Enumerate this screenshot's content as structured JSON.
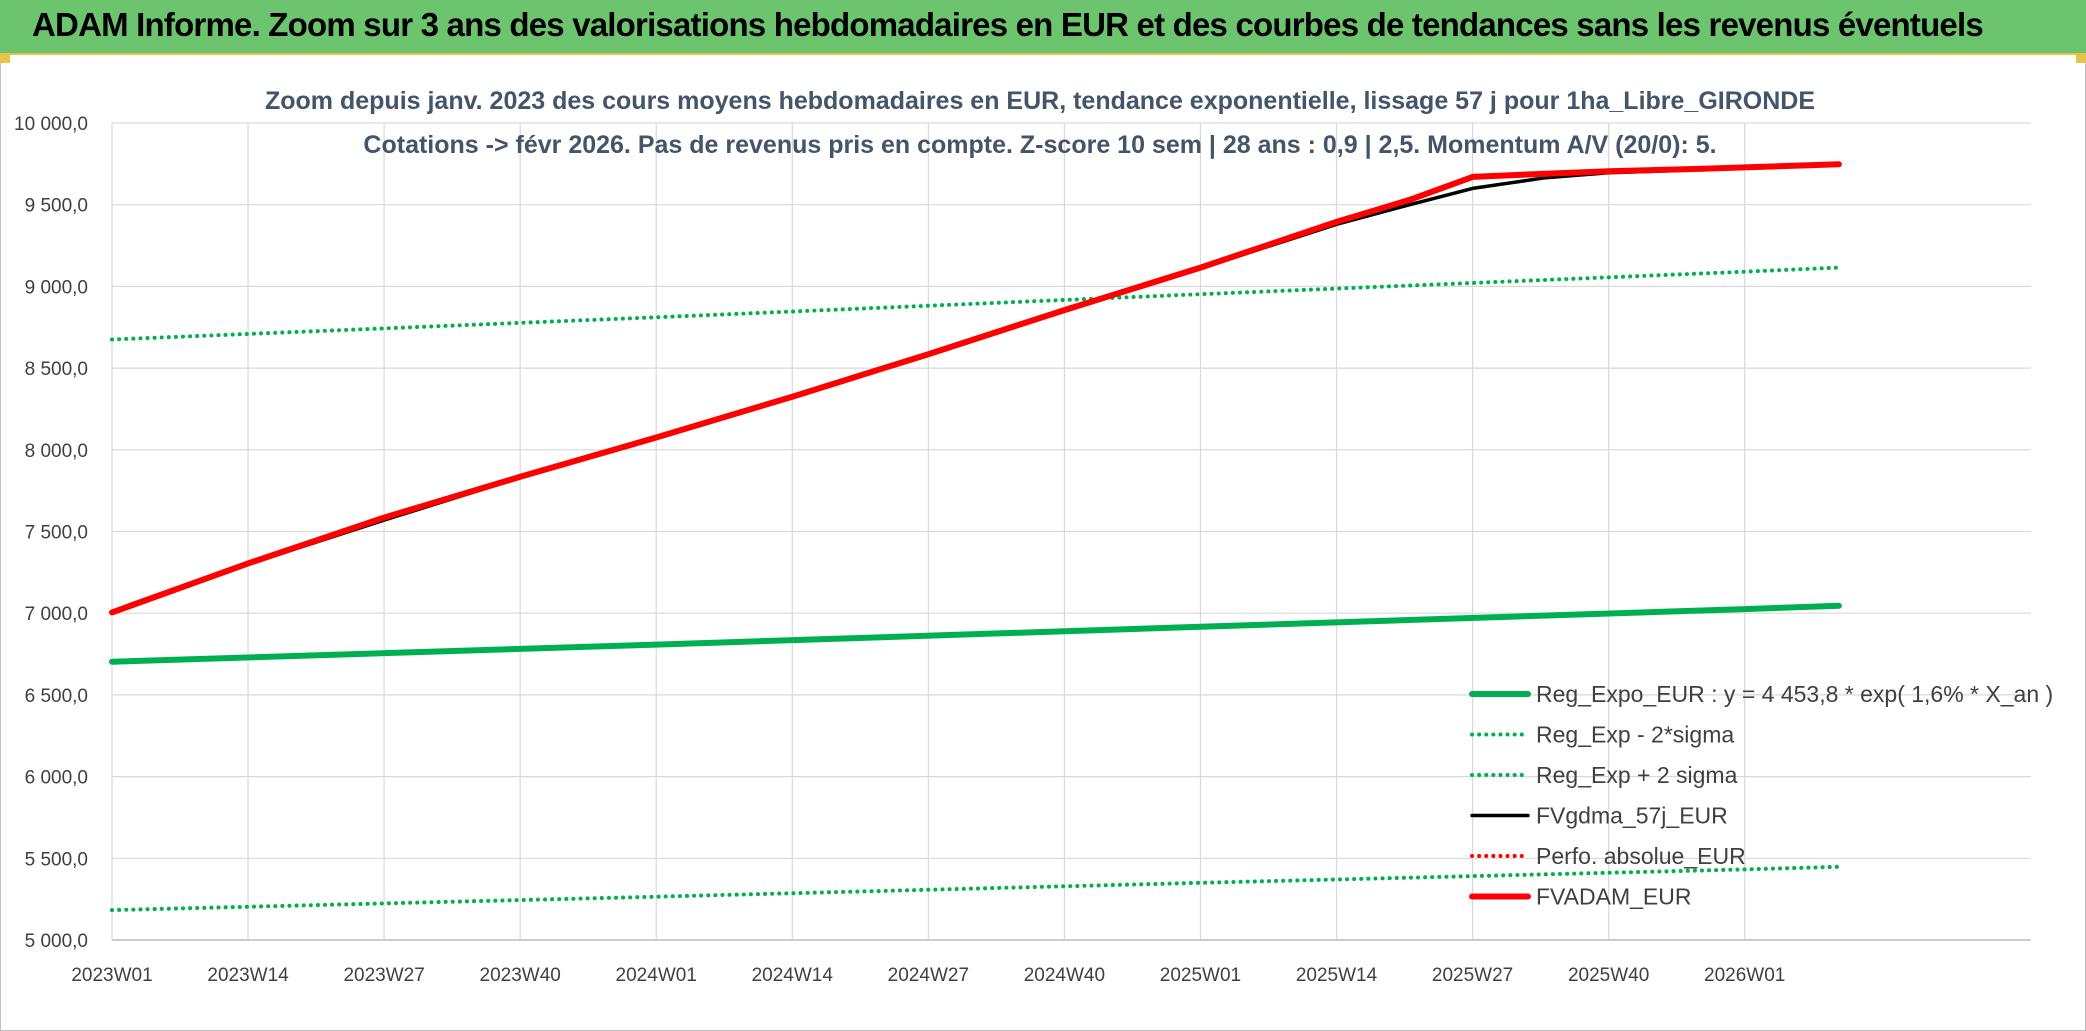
{
  "banner": {
    "title": "ADAM Informe. Zoom sur 3 ans des valorisations hebdomadaires en EUR et des courbes de tendances sans les revenus éventuels"
  },
  "chart_data": {
    "type": "line",
    "title_line1": "Zoom depuis janv. 2023 des cours moyens hebdomadaires en EUR, tendance exponentielle, lissage 57 j pour 1ha_Libre_GIRONDE",
    "title_line2": "Cotations -> févr 2026. Pas de revenus pris en compte. Z-score 10 sem | 28 ans : 0,9 | 2,5. Momentum A/V (20/0): 5.",
    "xlabel": "",
    "ylabel": "",
    "ylim": [
      5000,
      10000
    ],
    "y_ticks": [
      "5 000,0",
      "5 500,0",
      "6 000,0",
      "6 500,0",
      "7 000,0",
      "7 500,0",
      "8 000,0",
      "8 500,0",
      "9 000,0",
      "9 500,0",
      "10 000,0"
    ],
    "x_ticks": [
      "2023W01",
      "2023W14",
      "2023W27",
      "2023W40",
      "2024W01",
      "2024W14",
      "2024W27",
      "2024W40",
      "2025W01",
      "2025W14",
      "2025W27",
      "2025W40",
      "2026W01"
    ],
    "x_range_weeks": [
      0,
      165
    ],
    "grid": true,
    "legend_position": "bottom-right",
    "series": [
      {
        "name": "Reg_Expo_EUR : y = 4 453,8 * exp( 1,6% *  X_an )",
        "style": "solid-thick",
        "color": "#00b050",
        "x": [
          0,
          52,
          104,
          156,
          165
        ],
        "values": [
          6703,
          6808,
          6917,
          7025,
          7045
        ]
      },
      {
        "name": "Reg_Exp - 2*sigma",
        "style": "dotted",
        "color": "#00b050",
        "x": [
          0,
          52,
          104,
          156,
          165
        ],
        "values": [
          5183,
          5265,
          5350,
          5432,
          5448
        ]
      },
      {
        "name": "Reg_Exp + 2 sigma",
        "style": "dotted",
        "color": "#00b050",
        "x": [
          0,
          52,
          104,
          156,
          165
        ],
        "values": [
          8675,
          8811,
          8952,
          9090,
          9115
        ]
      },
      {
        "name": "FVgdma_57j_EUR",
        "style": "solid",
        "color": "#000000",
        "x": [
          0,
          13,
          26,
          39,
          52,
          65,
          78,
          91,
          104,
          117,
          124,
          130,
          137,
          143,
          152,
          165
        ],
        "values": [
          7002,
          7300,
          7570,
          7830,
          8070,
          8320,
          8580,
          8850,
          9110,
          9380,
          9500,
          9600,
          9665,
          9695,
          9715,
          9745
        ]
      },
      {
        "name": "Perfo. absolue_EUR",
        "style": "dotted",
        "color": "#ff0000",
        "x": [
          0,
          13,
          26,
          39,
          52,
          65,
          78,
          91,
          104,
          117,
          124,
          130,
          137,
          143,
          152,
          165
        ],
        "values": [
          7005,
          7305,
          7585,
          7835,
          8075,
          8325,
          8585,
          8855,
          9115,
          9395,
          9530,
          9670,
          9690,
          9705,
          9720,
          9748
        ]
      },
      {
        "name": "FVADAM_EUR",
        "style": "solid-thick",
        "color": "#ff0000",
        "x": [
          0,
          13,
          26,
          39,
          52,
          65,
          78,
          91,
          104,
          117,
          124,
          130,
          137,
          143,
          152,
          165
        ],
        "values": [
          7005,
          7305,
          7585,
          7835,
          8075,
          8325,
          8585,
          8855,
          9115,
          9395,
          9530,
          9670,
          9690,
          9705,
          9720,
          9748
        ]
      }
    ]
  }
}
